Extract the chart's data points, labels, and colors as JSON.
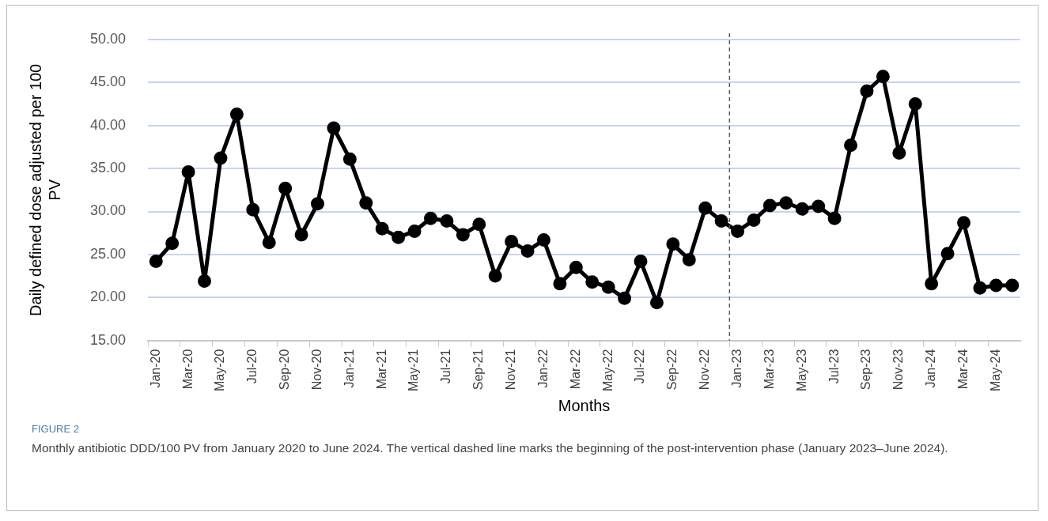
{
  "chart_data": {
    "type": "line",
    "xlabel": "Months",
    "ylabel": "Daily defined dose adjusted per 100 PV",
    "categories": [
      "Jan-20",
      null,
      "Mar-20",
      null,
      "May-20",
      null,
      "Jul-20",
      null,
      "Sep-20",
      null,
      "Nov-20",
      null,
      "Jan-21",
      null,
      "Mar-21",
      null,
      "May-21",
      null,
      "Jul-21",
      null,
      "Sep-21",
      null,
      "Nov-21",
      null,
      "Jan-22",
      null,
      "Mar-22",
      null,
      "May-22",
      null,
      "Jul-22",
      null,
      "Sep-22",
      null,
      "Nov-22",
      null,
      "Jan-23",
      null,
      "Mar-23",
      null,
      "May-23",
      null,
      "Jul-23",
      null,
      "Sep-23",
      null,
      "Nov-23",
      null,
      "Jan-24",
      null,
      "Mar-24",
      null,
      "May-24",
      null
    ],
    "series": [
      {
        "color": "#000000",
        "values": [
          24.2,
          26.3,
          34.6,
          21.9,
          36.2,
          41.3,
          30.2,
          26.4,
          32.7,
          27.3,
          30.9,
          39.7,
          36.1,
          31.0,
          28.0,
          27.0,
          27.7,
          29.2,
          28.9,
          27.3,
          28.5,
          22.5,
          26.5,
          25.4,
          26.7,
          21.6,
          23.5,
          21.8,
          21.2,
          19.9,
          24.2,
          19.4,
          26.2,
          24.4,
          30.4,
          28.9,
          27.7,
          29.0,
          30.7,
          31.0,
          30.3,
          30.6,
          29.2,
          37.7,
          44.0,
          45.7,
          36.8,
          42.5,
          21.6,
          25.1,
          28.7,
          21.1,
          21.4,
          21.4
        ]
      }
    ],
    "ylim": [
      15,
      50
    ],
    "yticks": [
      {
        "value": 15,
        "label": "15.00"
      },
      {
        "value": 20,
        "label": "20.00"
      },
      {
        "value": 25,
        "label": "25.00"
      },
      {
        "value": 30,
        "label": "30.00"
      },
      {
        "value": 35,
        "label": "35.00"
      },
      {
        "value": 40,
        "label": "40.00"
      },
      {
        "value": 45,
        "label": "45.00"
      },
      {
        "value": 50,
        "label": "50.00"
      }
    ],
    "grid": "y",
    "marker": "circle",
    "line_style": "solid",
    "ref_lines": [
      {
        "axis": "x",
        "value": "Jan-23",
        "color": "#595959",
        "line_style": "dashed"
      }
    ],
    "annotations": [
      "FIGURE 2",
      "Monthly antibiotic DDD/100 PV from January 2020 to June 2024. The vertical dashed line marks the beginning of the post-intervention phase (January 2023–June 2024)."
    ]
  }
}
